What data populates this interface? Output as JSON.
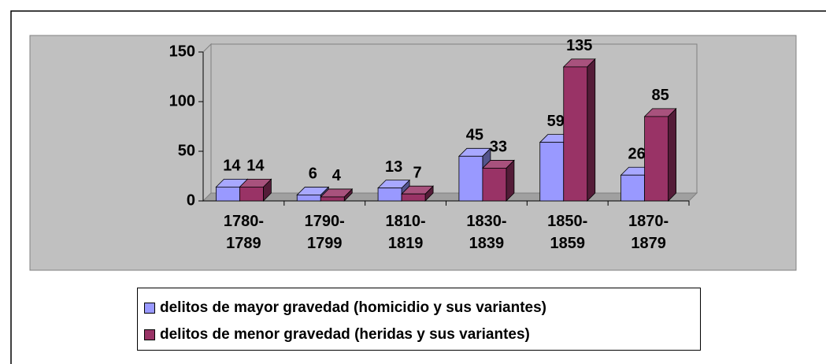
{
  "chart_data": {
    "type": "bar3d",
    "categories": [
      "1780-1789",
      "1790-1799",
      "1810-1819",
      "1830-1839",
      "1850-1859",
      "1870-1879"
    ],
    "series": [
      {
        "name": "delitos de mayor gravedad (homicidio y sus variantes)",
        "color": "#9999ff",
        "values": [
          14,
          6,
          13,
          45,
          59,
          26
        ]
      },
      {
        "name": "delitos de menor gravedad (heridas y sus variantes)",
        "color": "#993366",
        "values": [
          14,
          4,
          7,
          33,
          135,
          85
        ]
      }
    ],
    "ylim": [
      0,
      150
    ],
    "yticks": [
      0,
      50,
      100,
      150
    ],
    "legend": "bottom"
  }
}
